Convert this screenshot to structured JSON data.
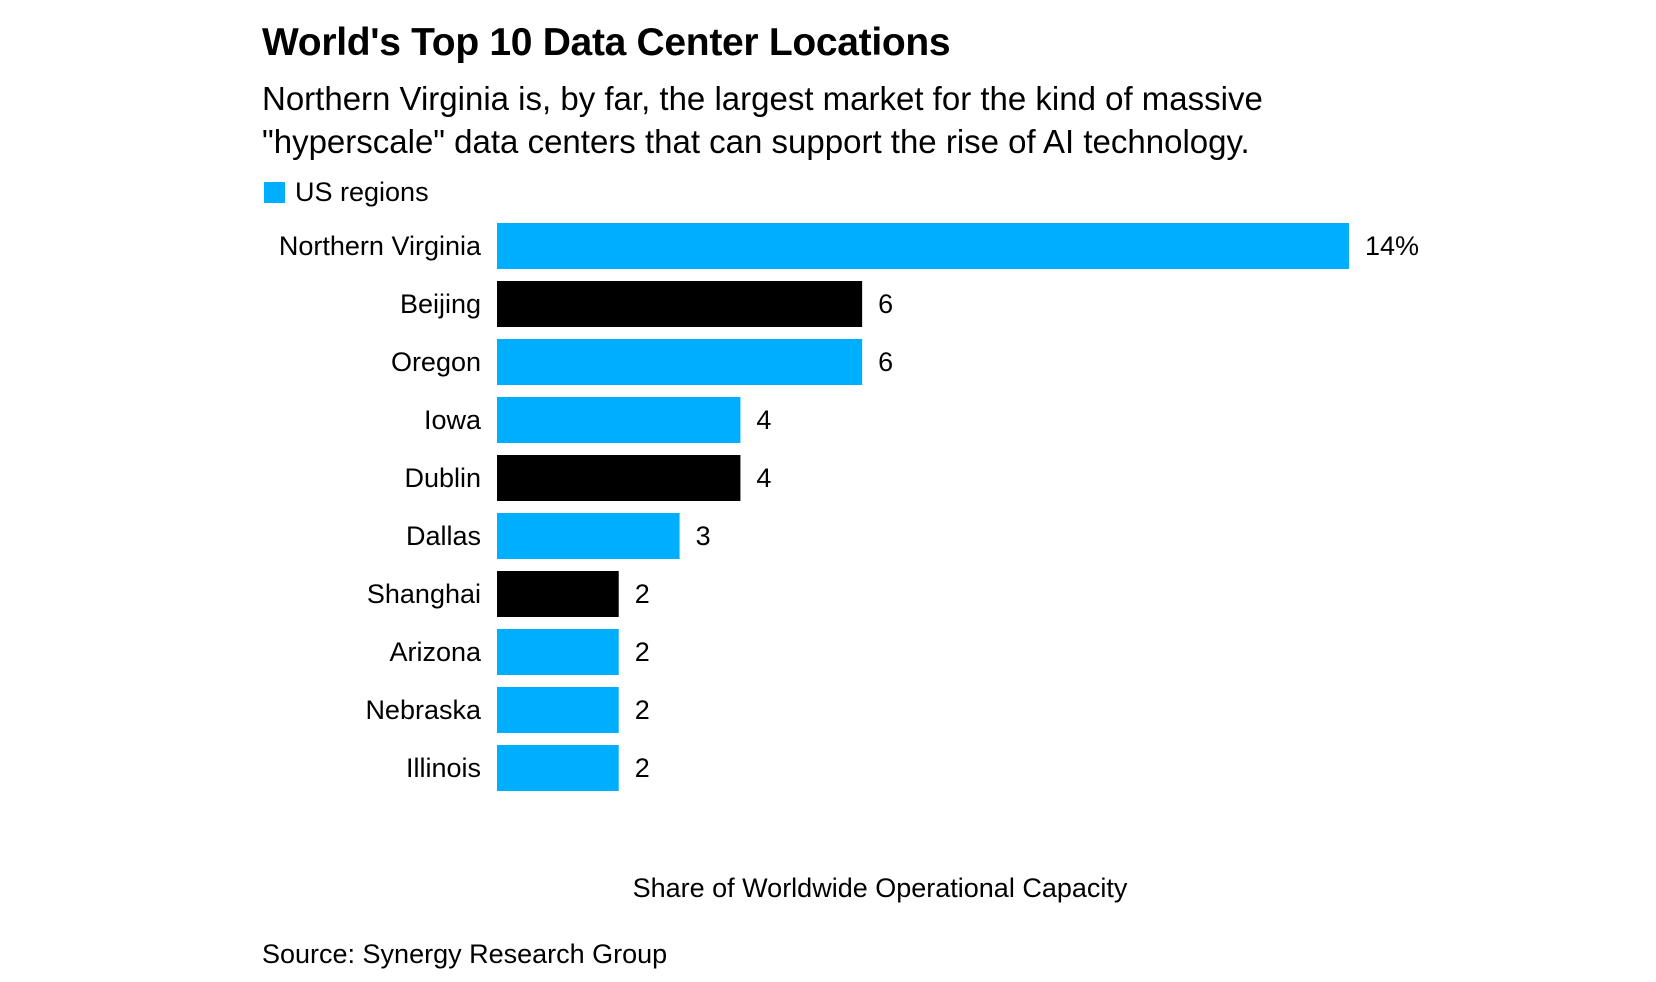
{
  "chart_data": {
    "type": "bar",
    "orientation": "horizontal",
    "title": "World's Top 10 Data Center Locations",
    "subtitle": "Northern Virginia is, by far, the largest market for the kind of massive \"hyperscale\" data centers that can support the rise of AI technology.",
    "legend": [
      {
        "label": "US regions",
        "color": "#00AEFF"
      }
    ],
    "categories": [
      "Northern Virginia",
      "Beijing",
      "Oregon",
      "Iowa",
      "Dublin",
      "Dallas",
      "Shanghai",
      "Arizona",
      "Nebraska",
      "Illinois"
    ],
    "values": [
      14,
      6,
      6,
      4,
      4,
      3,
      2,
      2,
      2,
      2
    ],
    "value_labels": [
      "14%",
      "6",
      "6",
      "4",
      "4",
      "3",
      "2",
      "2",
      "2",
      "2"
    ],
    "is_us_region": [
      true,
      false,
      true,
      true,
      false,
      true,
      false,
      true,
      true,
      true
    ],
    "colors": {
      "us": "#00AEFF",
      "other": "#000000"
    },
    "xlabel": "Share of Worldwide Operational Capacity",
    "xlim": [
      0,
      14
    ],
    "grid": false,
    "source": "Source: Synergy Research Group"
  }
}
